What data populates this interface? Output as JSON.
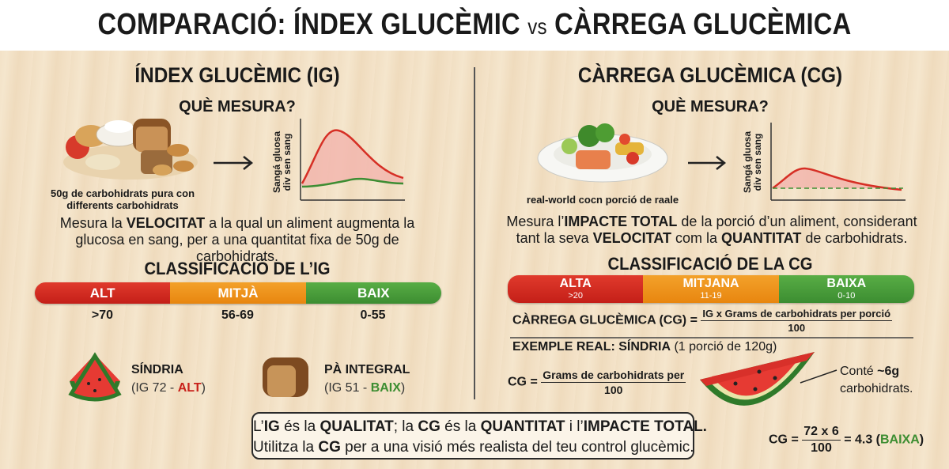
{
  "title": {
    "left": "COMPARACIÓ: ÍNDEX GLUCÈMIC",
    "vs": "vs",
    "right": "CÀRREGA GLUCÈMICA"
  },
  "left": {
    "heading": "ÍNDEX GLUCÈMIC (IG)",
    "question": "QUÈ MESURA?",
    "image_caption": "50g de carbohidrats pura con differents carbohidrats",
    "graph_axis": "Sangá gluosa div sen sang",
    "description": [
      "Mesura la ",
      "VELOCITAT",
      " a la qual un aliment augmenta la glucosa en sang, per a una quantitat fixa de 50g de carbohidrats."
    ],
    "classification_title": "CLASSIFICACIÓ DE L’IG",
    "levels": [
      {
        "label": "ALT",
        "range": ">70"
      },
      {
        "label": "MITJÀ",
        "range": "56-69"
      },
      {
        "label": "BAIX",
        "range": "0-55"
      }
    ],
    "examples": [
      {
        "name": "SÍNDRIA",
        "detail": [
          "(IG 72 - ",
          "ALT",
          ")"
        ]
      },
      {
        "name": "PÀ INTEGRAL",
        "detail": [
          "(IG 51 - ",
          "BAIX",
          ")"
        ]
      }
    ]
  },
  "right": {
    "heading": "CÀRREGA GLUCÈMICA (CG)",
    "question": "QUÈ MESURA?",
    "image_caption": "real-world cocn porció de raale",
    "graph_axis": "Sangá gluosa div sen sang",
    "description": [
      "Mesura l’",
      "IMPACTE TOTAL",
      " de la porció d’un aliment, considerant tant la seva ",
      "VELOCITAT",
      " com la ",
      "QUANTITAT",
      " de carbohidrats."
    ],
    "classification_title": "CLASSIFICACIÓ DE LA CG",
    "levels": [
      {
        "label": "ALTA",
        "range": ">20"
      },
      {
        "label": "MITJANA",
        "range": "11-19"
      },
      {
        "label": "BAIXA",
        "range": "0-10"
      }
    ],
    "formula": {
      "lhs": "CÀRREGA GLUCÈMICA (CG) =",
      "numerator": "IG x Grams de carbohidrats per porció",
      "denominator": "100"
    },
    "example_title": "EXEMPLE REAL: SÍNDRIA",
    "example_detail": "(1 porció de 120g)",
    "example_formula": {
      "lhs": "CG =",
      "numerator": "Grams de carbohidrats per",
      "denominator": "100"
    },
    "callout": [
      "Conté ",
      "~6g",
      "carbohidrats."
    ],
    "result": {
      "lhs": "CG =",
      "numerator": "72 x 6",
      "denominator": "100",
      "rhs": [
        "= 4.3 (",
        "BAIXA",
        ")"
      ]
    }
  },
  "summary": {
    "line1": [
      "L’",
      "IG",
      " és la ",
      "QUALITAT",
      "; la ",
      "CG",
      " és la ",
      "QUANTITAT",
      " i l’",
      "IMPACTE TOTAL."
    ],
    "line2": [
      "Utilitza la ",
      "CG",
      " per a una visió més realista del teu control glucèmic."
    ]
  }
}
